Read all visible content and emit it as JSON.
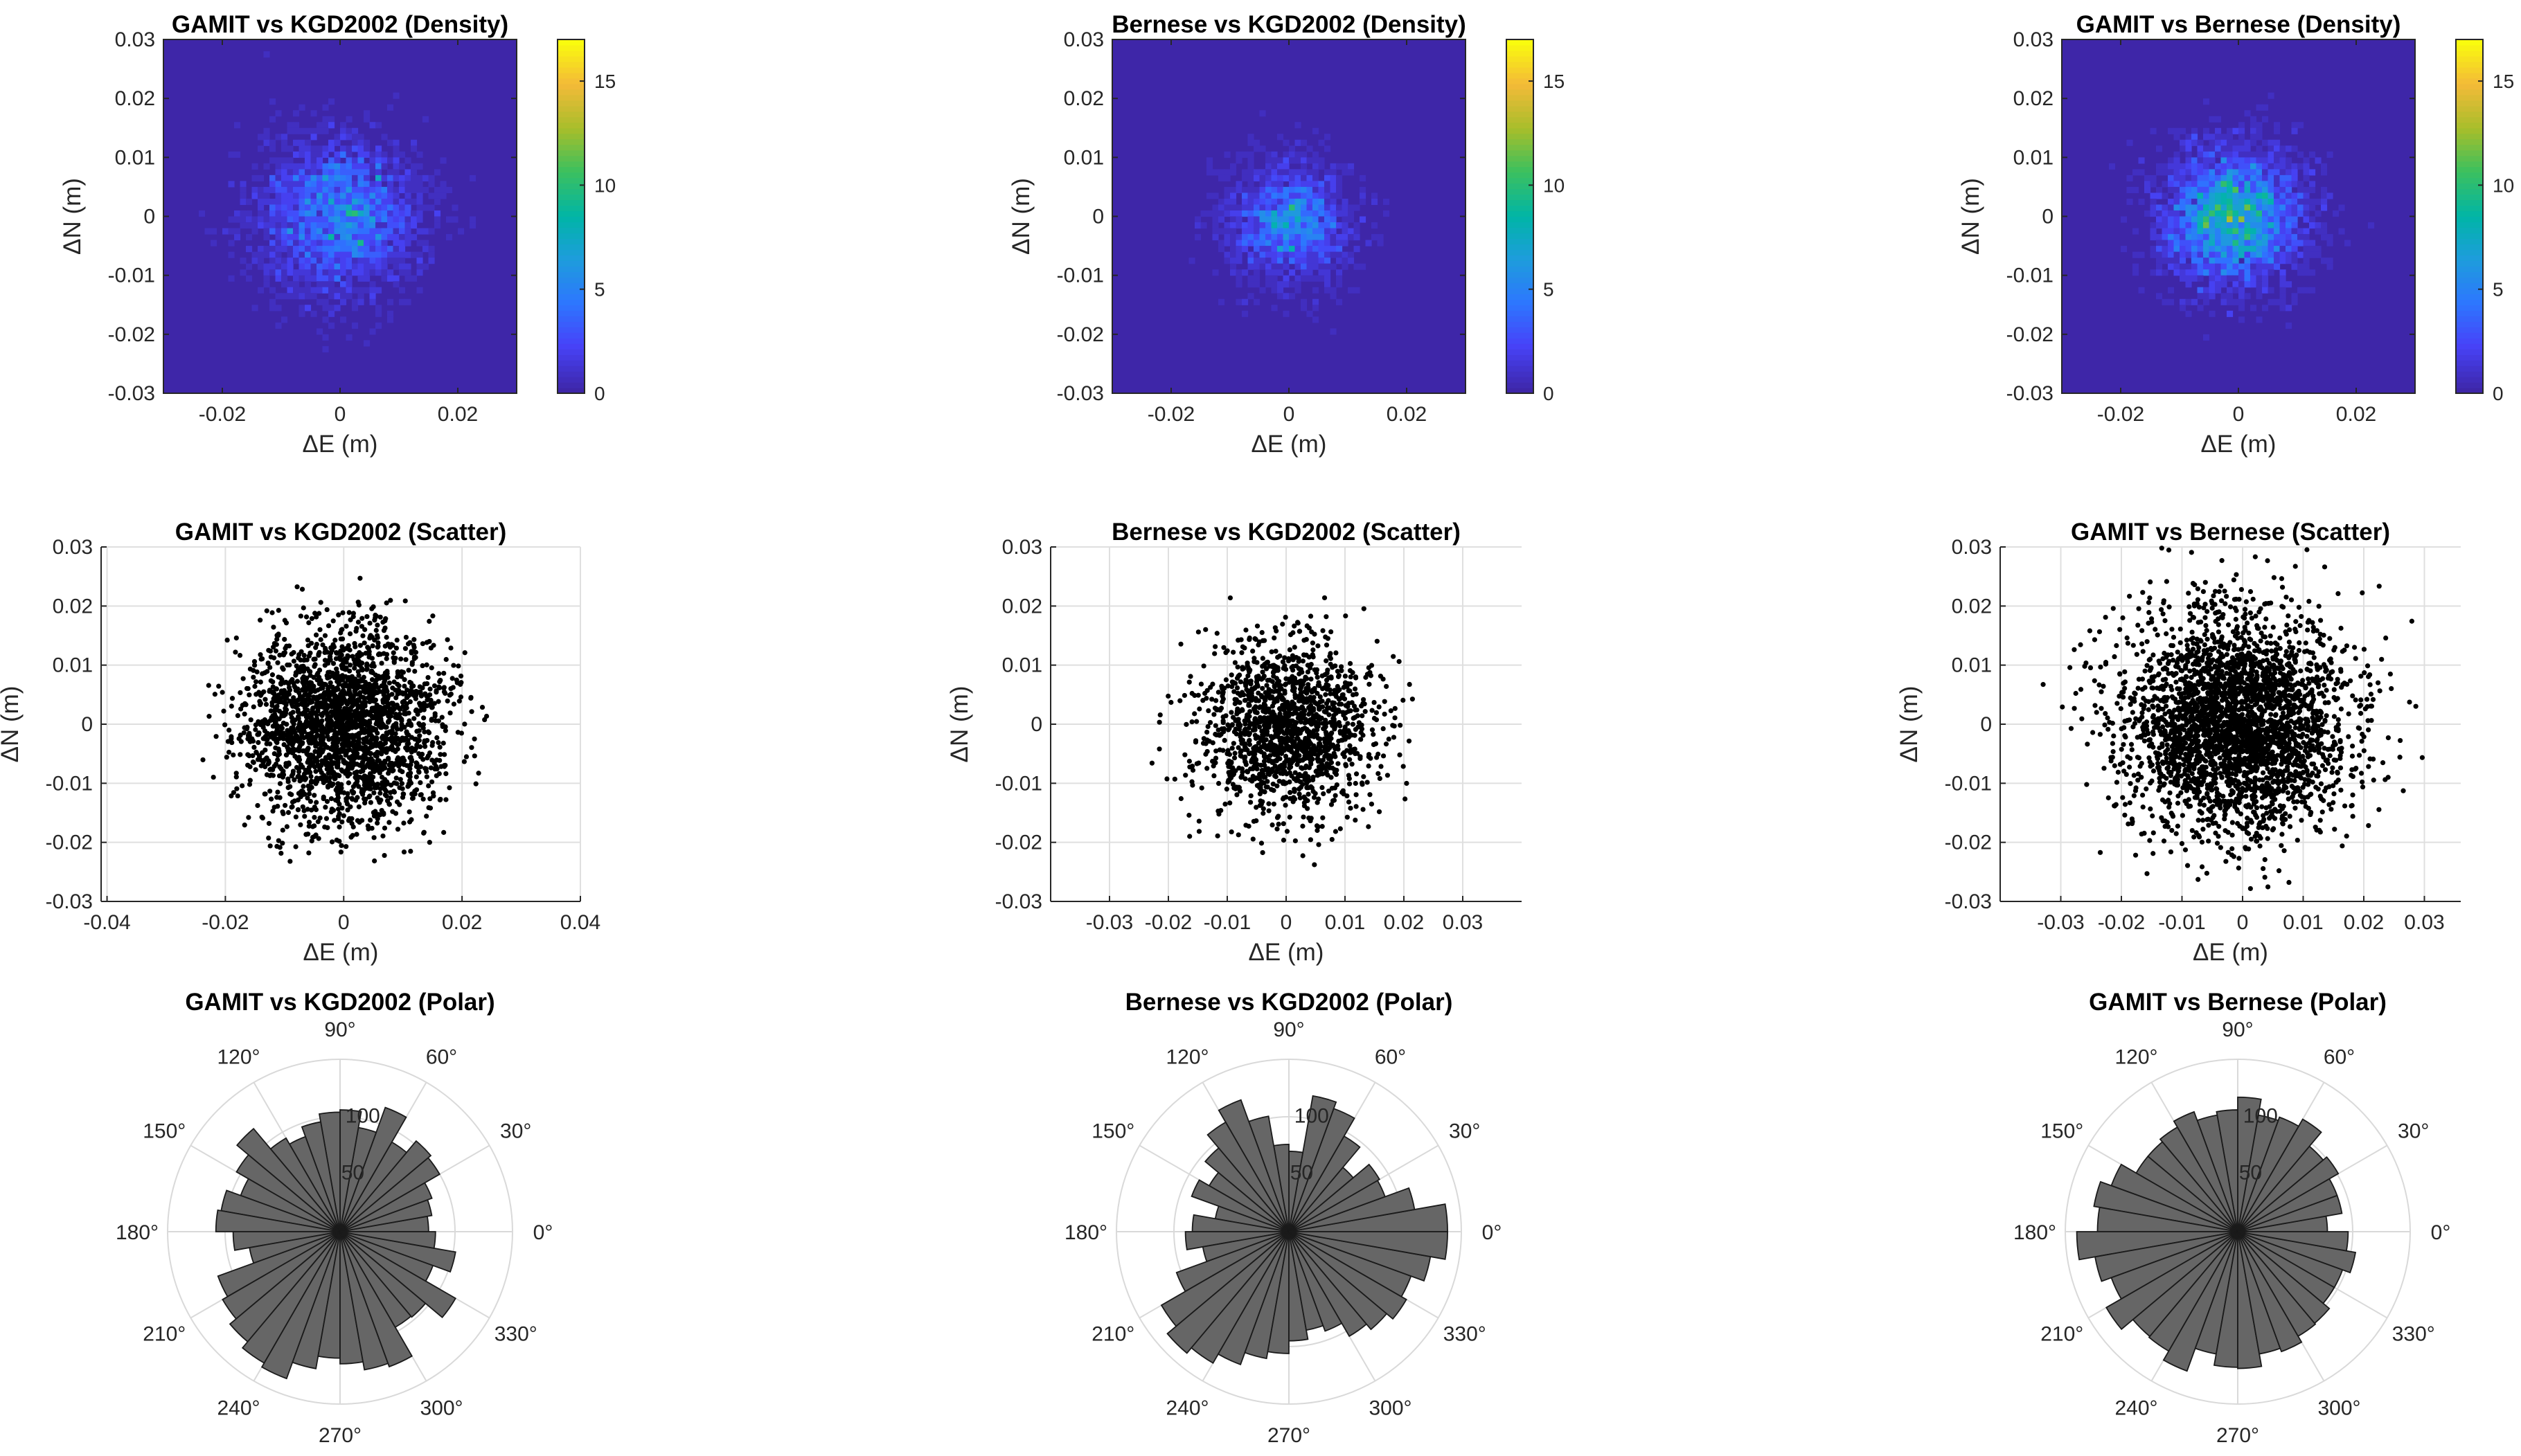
{
  "figure": {
    "background": "#ffffff"
  },
  "chart_data": [
    {
      "type": "heatmap",
      "key": "d1",
      "title": "GAMIT vs KGD2002 (Density)",
      "xlabel": "ΔE (m)",
      "ylabel": "ΔN (m)",
      "xlim": [
        -0.03,
        0.03
      ],
      "ylim": [
        -0.03,
        0.03
      ],
      "xticks": [
        -0.02,
        0,
        0.02
      ],
      "xtick_labels": [
        "-0.02",
        "0",
        "0.02"
      ],
      "yticks": [
        -0.03,
        -0.02,
        -0.01,
        0,
        0.01,
        0.02,
        0.03
      ],
      "ytick_labels": [
        "-0.03",
        "-0.02",
        "-0.01",
        "0",
        "0.01",
        "0.02",
        "0.03"
      ],
      "colorbar": {
        "lim": [
          0,
          17
        ],
        "ticks": [
          0,
          5,
          10,
          15
        ],
        "tick_labels": [
          "0",
          "5",
          "10",
          "15"
        ],
        "colormap": "parula"
      },
      "blob": {
        "center": [
          0.0,
          0.0
        ],
        "sigma": 0.0085,
        "peak": 10,
        "spread_sigma": 0.0125,
        "n_points": 2300
      }
    },
    {
      "type": "heatmap",
      "key": "d2",
      "title": "Bernese vs KGD2002 (Density)",
      "xlabel": "ΔE (m)",
      "ylabel": "ΔN (m)",
      "xlim": [
        -0.03,
        0.03
      ],
      "ylim": [
        -0.03,
        0.03
      ],
      "xticks": [
        -0.02,
        0,
        0.02
      ],
      "xtick_labels": [
        "-0.02",
        "0",
        "0.02"
      ],
      "yticks": [
        -0.03,
        -0.02,
        -0.01,
        0,
        0.01,
        0.02,
        0.03
      ],
      "ytick_labels": [
        "-0.03",
        "-0.02",
        "-0.01",
        "0",
        "0.01",
        "0.02",
        "0.03"
      ],
      "colorbar": {
        "lim": [
          0,
          17
        ],
        "ticks": [
          0,
          5,
          10,
          15
        ],
        "tick_labels": [
          "0",
          "5",
          "10",
          "15"
        ],
        "colormap": "parula"
      },
      "blob": {
        "center": [
          0.0,
          -0.001
        ],
        "sigma": 0.0065,
        "peak": 10,
        "spread_sigma": 0.0095,
        "n_points": 1500
      }
    },
    {
      "type": "heatmap",
      "key": "d3",
      "title": "GAMIT vs Bernese (Density)",
      "xlabel": "ΔE (m)",
      "ylabel": "ΔN (m)",
      "xlim": [
        -0.03,
        0.03
      ],
      "ylim": [
        -0.03,
        0.03
      ],
      "xticks": [
        -0.02,
        0,
        0.02
      ],
      "xtick_labels": [
        "-0.02",
        "0",
        "0.02"
      ],
      "yticks": [
        -0.03,
        -0.02,
        -0.01,
        0,
        0.01,
        0.02,
        0.03
      ],
      "ytick_labels": [
        "-0.03",
        "-0.02",
        "-0.01",
        "0",
        "0.01",
        "0.02",
        "0.03"
      ],
      "colorbar": {
        "lim": [
          0,
          17
        ],
        "ticks": [
          0,
          5,
          10,
          15
        ],
        "tick_labels": [
          "0",
          "5",
          "10",
          "15"
        ],
        "colormap": "parula"
      },
      "blob": {
        "center": [
          -0.001,
          0.0
        ],
        "sigma": 0.0065,
        "peak": 13,
        "spread_sigma": 0.011,
        "n_points": 3000
      }
    },
    {
      "type": "scatter",
      "key": "s1",
      "title": "GAMIT vs KGD2002 (Scatter)",
      "xlabel": "ΔE (m)",
      "ylabel": "ΔN (m)",
      "xlim": [
        -0.041,
        0.04
      ],
      "ylim": [
        -0.03,
        0.03
      ],
      "xticks": [
        -0.04,
        -0.02,
        0,
        0.02,
        0.04
      ],
      "xtick_labels": [
        "-0.04",
        "-0.02",
        "0",
        "0.02",
        "0.04"
      ],
      "yticks": [
        -0.03,
        -0.02,
        -0.01,
        0,
        0.01,
        0.02,
        0.03
      ],
      "ytick_labels": [
        "-0.03",
        "-0.02",
        "-0.01",
        "0",
        "0.01",
        "0.02",
        "0.03"
      ],
      "grid": true,
      "points": {
        "n": 2400,
        "center": [
          0.0,
          0.0
        ],
        "sigma": 0.0085,
        "max_radius": 0.025,
        "seed": 11
      }
    },
    {
      "type": "scatter",
      "key": "s2",
      "title": "Bernese vs KGD2002 (Scatter)",
      "xlabel": "ΔE (m)",
      "ylabel": "ΔN (m)",
      "xlim": [
        -0.04,
        0.04
      ],
      "ylim": [
        -0.03,
        0.03
      ],
      "xticks": [
        -0.03,
        -0.02,
        -0.01,
        0,
        0.01,
        0.02,
        0.03
      ],
      "xtick_labels": [
        "-0.03",
        "-0.02",
        "-0.01",
        "0",
        "0.01",
        "0.02",
        "0.03"
      ],
      "yticks": [
        -0.03,
        -0.02,
        -0.01,
        0,
        0.01,
        0.02,
        0.03
      ],
      "ytick_labels": [
        "-0.03",
        "-0.02",
        "-0.01",
        "0",
        "0.01",
        "0.02",
        "0.03"
      ],
      "grid": true,
      "points": {
        "n": 1500,
        "center": [
          0.0,
          -0.001
        ],
        "sigma": 0.0075,
        "max_radius": 0.025,
        "seed": 23
      }
    },
    {
      "type": "scatter",
      "key": "s3",
      "title": "GAMIT vs Bernese (Scatter)",
      "xlabel": "ΔE (m)",
      "ylabel": "ΔN (m)",
      "xlim": [
        -0.04,
        0.036
      ],
      "ylim": [
        -0.03,
        0.03
      ],
      "xticks": [
        -0.03,
        -0.02,
        -0.01,
        0,
        0.01,
        0.02,
        0.03
      ],
      "xtick_labels": [
        "-0.03",
        "-0.02",
        "-0.01",
        "0",
        "0.01",
        "0.02",
        "0.03"
      ],
      "yticks": [
        -0.03,
        -0.02,
        -0.01,
        0,
        0.01,
        0.02,
        0.03
      ],
      "ytick_labels": [
        "-0.03",
        "-0.02",
        "-0.01",
        "0",
        "0.01",
        "0.02",
        "0.03"
      ],
      "grid": true,
      "points": {
        "n": 3000,
        "center": [
          -0.001,
          0.0
        ],
        "sigma": 0.0095,
        "max_radius": 0.034,
        "seed": 37
      }
    },
    {
      "type": "polar_histogram",
      "key": "p1",
      "title": "GAMIT vs KGD2002 (Polar)",
      "rmax": 150,
      "rticks": [
        50,
        100
      ],
      "rtick_labels": [
        "50",
        "100"
      ],
      "angle_ticks": [
        0,
        30,
        60,
        90,
        120,
        150,
        180,
        210,
        240,
        270,
        300,
        330
      ],
      "angle_labels": [
        "0°",
        "30°",
        "60°",
        "90°",
        "120°",
        "150°",
        "180°",
        "210°",
        "240°",
        "270°",
        "300°",
        "330°"
      ],
      "bar_color": "#666666",
      "bin_width_deg": 10,
      "counts": [
        77,
        81,
        85,
        100,
        103,
        90,
        115,
        92,
        106,
        104,
        97,
        88,
        94,
        117,
        104,
        92,
        105,
        108,
        93,
        80,
        113,
        118,
        125,
        132,
        136,
        121,
        110,
        115,
        122,
        125,
        96,
        97,
        116,
        86,
        102,
        83
      ]
    },
    {
      "type": "polar_histogram",
      "key": "p2",
      "title": "Bernese vs KGD2002 (Polar)",
      "rmax": 150,
      "rticks": [
        50,
        100
      ],
      "rtick_labels": [
        "50",
        "100"
      ],
      "angle_ticks": [
        0,
        30,
        60,
        90,
        120,
        150,
        180,
        210,
        240,
        270,
        300,
        330
      ],
      "angle_labels": [
        "0°",
        "30°",
        "60°",
        "90°",
        "120°",
        "150°",
        "180°",
        "210°",
        "240°",
        "270°",
        "300°",
        "330°"
      ],
      "bar_color": "#666666",
      "bin_width_deg": 10,
      "counts": [
        138,
        111,
        89,
        91,
        73,
        96,
        114,
        120,
        70,
        76,
        102,
        122,
        110,
        95,
        80,
        90,
        65,
        84,
        90,
        76,
        104,
        128,
        138,
        132,
        123,
        112,
        106,
        95,
        87,
        92,
        105,
        111,
        118,
        113,
        125,
        138
      ]
    },
    {
      "type": "polar_histogram",
      "key": "p3",
      "title": "GAMIT vs Bernese (Polar)",
      "rmax": 150,
      "rticks": [
        50,
        100
      ],
      "rtick_labels": [
        "50",
        "100"
      ],
      "angle_ticks": [
        0,
        30,
        60,
        90,
        120,
        150,
        180,
        210,
        240,
        270,
        300,
        330
      ],
      "angle_labels": [
        "0°",
        "30°",
        "60°",
        "90°",
        "120°",
        "150°",
        "180°",
        "210°",
        "240°",
        "270°",
        "300°",
        "330°"
      ],
      "bar_color": "#666666",
      "bin_width_deg": 10,
      "counts": [
        78,
        92,
        92,
        101,
        97,
        113,
        106,
        103,
        117,
        106,
        103,
        111,
        105,
        102,
        102,
        117,
        127,
        122,
        140,
        126,
        117,
        132,
        119,
        120,
        129,
        108,
        118,
        119,
        108,
        111,
        105,
        104,
        97,
        97,
        104,
        96
      ]
    }
  ]
}
